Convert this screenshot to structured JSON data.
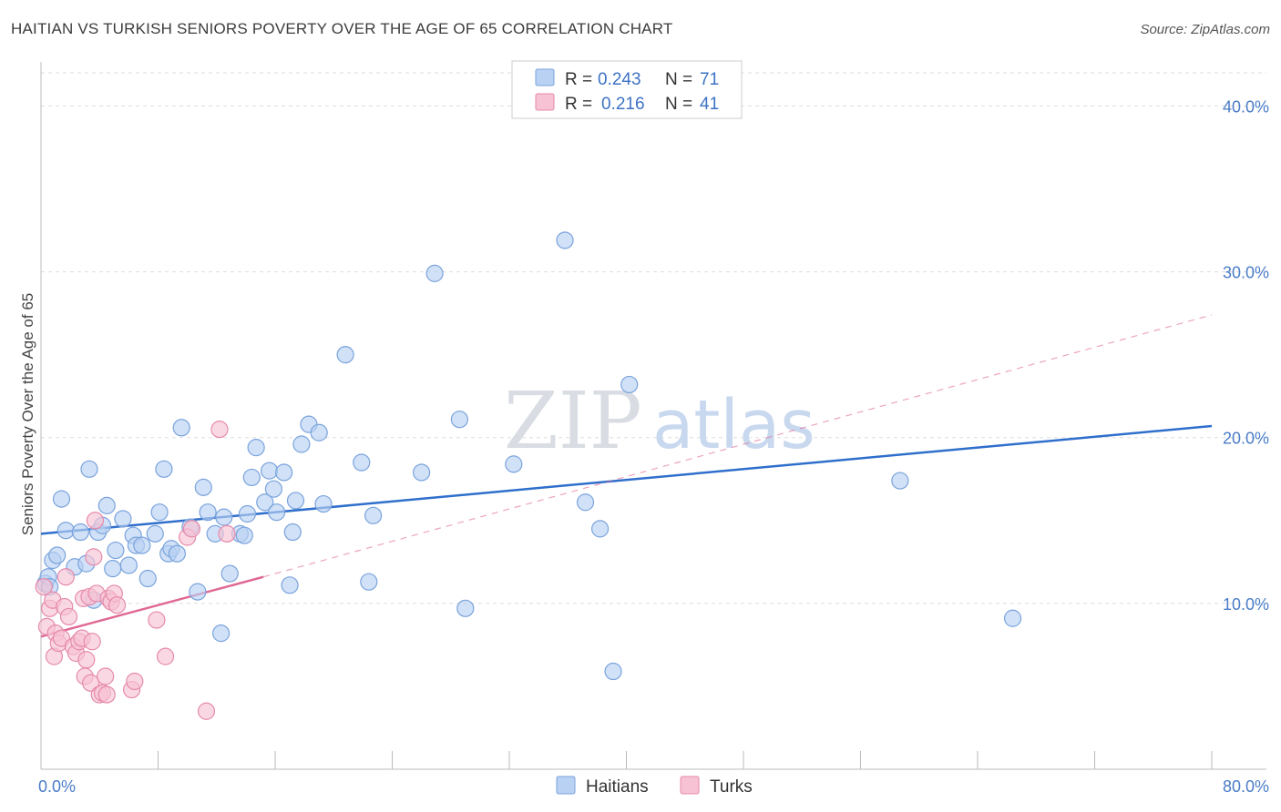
{
  "title": "HAITIAN VS TURKISH SENIORS POVERTY OVER THE AGE OF 65 CORRELATION CHART",
  "source": "Source: ZipAtlas.com",
  "watermark": {
    "zip": "ZIP",
    "atlas": "atlas"
  },
  "colors": {
    "haitians_fill": "#b9d1f3",
    "haitians_stroke": "#7aa3dc",
    "haitians_line": "#2f6fcc",
    "turks_fill": "#f7c3d4",
    "turks_stroke": "#e58aab",
    "turks_line": "#e06894",
    "grid": "#dddddd",
    "tick_label": "#4a7cc7"
  },
  "legend": {
    "haitians": {
      "r_label": "R =",
      "r_value": "0.243",
      "n_label": "N =",
      "n_value": "71"
    },
    "turks": {
      "r_label": "R =",
      "r_value": "0.216",
      "n_label": "N =",
      "n_value": "41"
    }
  },
  "bottom_legend": {
    "haitians": "Haitians",
    "turks": "Turks"
  },
  "chart_data": {
    "type": "scatter",
    "title": "HAITIAN VS TURKISH SENIORS POVERTY OVER THE AGE OF 65 CORRELATION CHART",
    "xlabel": "",
    "ylabel": "Seniors Poverty Over the Age of 65",
    "xlim": [
      0,
      80
    ],
    "ylim": [
      0,
      42
    ],
    "x_tick_labels": [
      {
        "value": 0,
        "label": "0.0%"
      },
      {
        "value": 80,
        "label": "80.0%"
      }
    ],
    "y_tick_labels": [
      {
        "value": 10,
        "label": "10.0%"
      },
      {
        "value": 20,
        "label": "20.0%"
      },
      {
        "value": 30,
        "label": "30.0%"
      },
      {
        "value": 40,
        "label": "40.0%"
      }
    ],
    "x_minor_ticks": [
      0,
      8,
      16,
      24,
      32,
      40,
      48,
      56,
      64,
      72,
      80
    ],
    "grid": true,
    "legend_position": "top-center",
    "series": [
      {
        "name": "Haitians",
        "r": 0.243,
        "n": 71,
        "trend": {
          "x0": 0,
          "y0": 14.2,
          "x1": 80,
          "y1": 20.7,
          "style": "solid"
        },
        "points": [
          [
            0.3,
            11.2
          ],
          [
            0.5,
            11.6
          ],
          [
            0.6,
            11.0
          ],
          [
            0.8,
            12.6
          ],
          [
            1.1,
            12.9
          ],
          [
            1.4,
            16.3
          ],
          [
            1.7,
            14.4
          ],
          [
            2.3,
            12.2
          ],
          [
            2.7,
            14.3
          ],
          [
            3.1,
            12.4
          ],
          [
            3.3,
            18.1
          ],
          [
            3.6,
            10.2
          ],
          [
            3.9,
            14.3
          ],
          [
            4.2,
            14.7
          ],
          [
            4.5,
            15.9
          ],
          [
            4.9,
            12.1
          ],
          [
            5.1,
            13.2
          ],
          [
            5.6,
            15.1
          ],
          [
            6.0,
            12.3
          ],
          [
            6.3,
            14.1
          ],
          [
            6.5,
            13.5
          ],
          [
            6.9,
            13.5
          ],
          [
            7.3,
            11.5
          ],
          [
            7.8,
            14.2
          ],
          [
            8.1,
            15.5
          ],
          [
            8.4,
            18.1
          ],
          [
            8.7,
            13.0
          ],
          [
            8.9,
            13.3
          ],
          [
            9.3,
            13.0
          ],
          [
            9.6,
            20.6
          ],
          [
            10.2,
            14.6
          ],
          [
            10.7,
            10.7
          ],
          [
            11.1,
            17.0
          ],
          [
            11.4,
            15.5
          ],
          [
            11.9,
            14.2
          ],
          [
            12.3,
            8.2
          ],
          [
            12.5,
            15.2
          ],
          [
            12.9,
            11.8
          ],
          [
            13.6,
            14.2
          ],
          [
            13.9,
            14.1
          ],
          [
            14.1,
            15.4
          ],
          [
            14.4,
            17.6
          ],
          [
            14.7,
            19.4
          ],
          [
            15.3,
            16.1
          ],
          [
            15.6,
            18.0
          ],
          [
            15.9,
            16.9
          ],
          [
            16.1,
            15.5
          ],
          [
            16.6,
            17.9
          ],
          [
            17.0,
            11.1
          ],
          [
            17.2,
            14.3
          ],
          [
            17.4,
            16.2
          ],
          [
            17.8,
            19.6
          ],
          [
            18.3,
            20.8
          ],
          [
            19.0,
            20.3
          ],
          [
            19.3,
            16.0
          ],
          [
            20.8,
            25.0
          ],
          [
            21.9,
            18.5
          ],
          [
            22.4,
            11.3
          ],
          [
            22.7,
            15.3
          ],
          [
            26.0,
            17.9
          ],
          [
            26.9,
            29.9
          ],
          [
            28.6,
            21.1
          ],
          [
            29.0,
            9.7
          ],
          [
            32.3,
            18.4
          ],
          [
            35.8,
            31.9
          ],
          [
            37.2,
            16.1
          ],
          [
            38.2,
            14.5
          ],
          [
            39.1,
            5.9
          ],
          [
            40.2,
            23.2
          ],
          [
            58.7,
            17.4
          ],
          [
            66.4,
            9.1
          ]
        ]
      },
      {
        "name": "Turks",
        "r": 0.216,
        "n": 41,
        "trend": {
          "x0": 0,
          "y0": 8.0,
          "x1": 15.2,
          "y1": 11.6,
          "style": "solid",
          "extension": {
            "x0": 15.2,
            "y0": 11.6,
            "x1": 80,
            "y1": 27.4,
            "style": "dashed"
          }
        },
        "points": [
          [
            0.2,
            11.0
          ],
          [
            0.4,
            8.6
          ],
          [
            0.6,
            9.7
          ],
          [
            0.8,
            10.2
          ],
          [
            0.9,
            6.8
          ],
          [
            1.0,
            8.2
          ],
          [
            1.2,
            7.6
          ],
          [
            1.4,
            7.9
          ],
          [
            1.6,
            9.8
          ],
          [
            1.7,
            11.6
          ],
          [
            1.9,
            9.2
          ],
          [
            2.2,
            7.4
          ],
          [
            2.4,
            7.0
          ],
          [
            2.6,
            7.7
          ],
          [
            2.8,
            7.9
          ],
          [
            2.9,
            10.3
          ],
          [
            3.0,
            5.6
          ],
          [
            3.1,
            6.6
          ],
          [
            3.3,
            10.4
          ],
          [
            3.4,
            5.2
          ],
          [
            3.5,
            7.7
          ],
          [
            3.6,
            12.8
          ],
          [
            3.7,
            15.0
          ],
          [
            3.8,
            10.6
          ],
          [
            4.0,
            4.5
          ],
          [
            4.2,
            4.6
          ],
          [
            4.4,
            5.6
          ],
          [
            4.5,
            4.5
          ],
          [
            4.6,
            10.3
          ],
          [
            4.8,
            10.1
          ],
          [
            5.0,
            10.6
          ],
          [
            5.2,
            9.9
          ],
          [
            6.2,
            4.8
          ],
          [
            6.4,
            5.3
          ],
          [
            7.9,
            9.0
          ],
          [
            8.5,
            6.8
          ],
          [
            10.0,
            14.0
          ],
          [
            10.3,
            14.5
          ],
          [
            12.2,
            20.5
          ],
          [
            11.3,
            3.5
          ],
          [
            12.7,
            14.2
          ]
        ]
      }
    ]
  }
}
